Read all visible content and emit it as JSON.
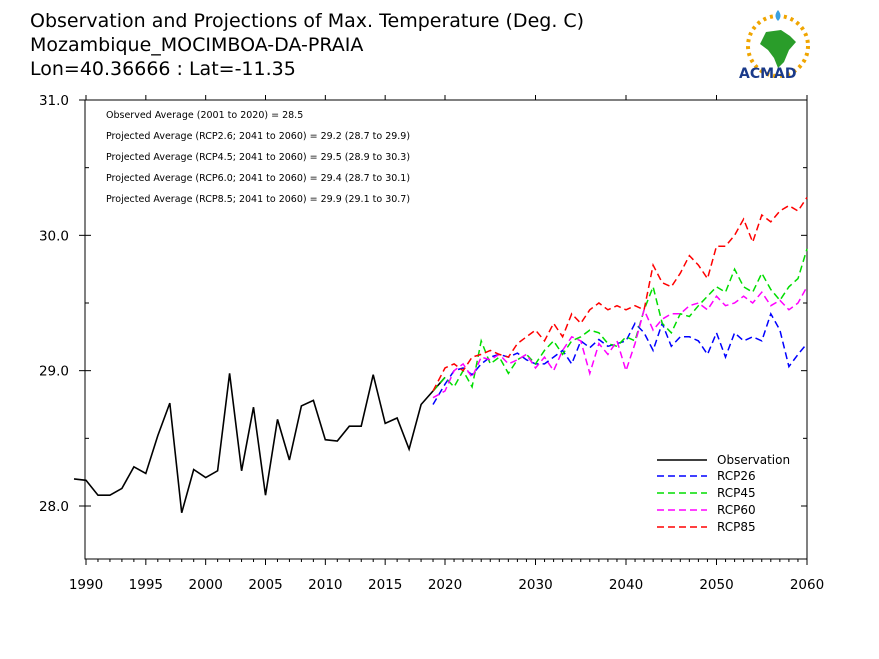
{
  "header": {
    "title_line1": "Observation and Projections of Max. Temperature (Deg. C)",
    "title_line2": "Mozambique_MOCIMBOA-DA-PRAIA",
    "title_line3": "Lon=40.36666 : Lat=-11.35"
  },
  "logo": {
    "text": "ACMAD",
    "icon": "africa-map-logo-icon"
  },
  "notes": [
    "Observed Average (2001 to 2020) = 28.5",
    "Projected Average (RCP2.6; 2041 to 2060) = 29.2 (28.7 to 29.9)",
    "Projected Average (RCP4.5; 2041 to 2060) = 29.5 (28.9 to 30.3)",
    "Projected Average (RCP6.0; 2041 to 2060) = 29.4 (28.7 to 30.1)",
    "Projected Average (RCP8.5; 2041 to 2060) = 29.9 (29.1 to 30.7)"
  ],
  "chart_data": {
    "type": "line",
    "title": "Observation and Projections of Max. Temperature (Deg. C)",
    "xlim": [
      1989,
      2060
    ],
    "ylim": [
      27.6,
      31.0
    ],
    "x_ticks": [
      1990,
      1995,
      2000,
      2005,
      2010,
      2015,
      2020,
      2030,
      2040,
      2050,
      2060
    ],
    "y_ticks": [
      28.0,
      29.0,
      30.0,
      31.0
    ],
    "y_tick_labels": [
      "28.0",
      "29.0",
      "30.0",
      "31.0"
    ],
    "grid": false,
    "legend_position": "bottom-right",
    "series": [
      {
        "name": "Observation",
        "color": "#000000",
        "dash": "solid",
        "x": [
          1989,
          1990,
          1991,
          1992,
          1993,
          1994,
          1995,
          1996,
          1997,
          1998,
          1999,
          2000,
          2001,
          2002,
          2003,
          2004,
          2005,
          2006,
          2007,
          2008,
          2009,
          2010,
          2011,
          2012,
          2013,
          2014,
          2015,
          2016,
          2017,
          2018,
          2019,
          2020
        ],
        "y": [
          28.2,
          28.19,
          28.08,
          28.08,
          28.13,
          28.29,
          28.24,
          28.52,
          28.76,
          27.95,
          28.27,
          28.21,
          28.26,
          28.98,
          28.26,
          28.73,
          28.08,
          28.64,
          28.34,
          28.74,
          28.78,
          28.49,
          28.48,
          28.59,
          28.59,
          28.97,
          28.61,
          28.65,
          28.42,
          28.75,
          28.85,
          28.95
        ]
      },
      {
        "name": "RCP26",
        "color": "#0000ff",
        "dash": "dashed",
        "x": [
          2019,
          2020,
          2021,
          2022,
          2023,
          2024,
          2025,
          2026,
          2027,
          2028,
          2029,
          2030,
          2031,
          2032,
          2033,
          2034,
          2035,
          2036,
          2037,
          2038,
          2039,
          2040,
          2041,
          2042,
          2043,
          2044,
          2045,
          2046,
          2047,
          2048,
          2049,
          2050,
          2051,
          2052,
          2053,
          2054,
          2055,
          2056,
          2057,
          2058,
          2059,
          2060
        ],
        "y": [
          28.75,
          28.9,
          29.0,
          29.02,
          28.97,
          29.05,
          29.1,
          29.12,
          29.1,
          29.13,
          29.08,
          29.05,
          29.05,
          29.1,
          29.15,
          29.05,
          29.22,
          29.17,
          29.23,
          29.18,
          29.2,
          29.22,
          29.35,
          29.28,
          29.15,
          29.35,
          29.18,
          29.25,
          29.25,
          29.22,
          29.12,
          29.28,
          29.1,
          29.28,
          29.22,
          29.25,
          29.22,
          29.42,
          29.3,
          29.03,
          29.12,
          29.2
        ]
      },
      {
        "name": "RCP45",
        "color": "#00dd00",
        "dash": "dashed",
        "x": [
          2019,
          2020,
          2021,
          2022,
          2023,
          2024,
          2025,
          2026,
          2027,
          2028,
          2029,
          2030,
          2031,
          2032,
          2033,
          2034,
          2035,
          2036,
          2037,
          2038,
          2039,
          2040,
          2041,
          2042,
          2043,
          2044,
          2045,
          2046,
          2047,
          2048,
          2049,
          2050,
          2051,
          2052,
          2053,
          2054,
          2055,
          2056,
          2057,
          2058,
          2059,
          2060
        ],
        "y": [
          28.85,
          28.95,
          28.88,
          29.0,
          28.88,
          29.22,
          29.05,
          29.1,
          28.98,
          29.08,
          29.12,
          29.05,
          29.15,
          29.22,
          29.12,
          29.22,
          29.25,
          29.3,
          29.28,
          29.2,
          29.18,
          29.25,
          29.22,
          29.45,
          29.62,
          29.35,
          29.28,
          29.42,
          29.4,
          29.48,
          29.55,
          29.62,
          29.58,
          29.75,
          29.62,
          29.58,
          29.72,
          29.6,
          29.52,
          29.62,
          29.68,
          29.9
        ]
      },
      {
        "name": "RCP60",
        "color": "#ff00ff",
        "dash": "dashed",
        "x": [
          2019,
          2020,
          2021,
          2022,
          2023,
          2024,
          2025,
          2026,
          2027,
          2028,
          2029,
          2030,
          2031,
          2032,
          2033,
          2034,
          2035,
          2036,
          2037,
          2038,
          2039,
          2040,
          2041,
          2042,
          2043,
          2044,
          2045,
          2046,
          2047,
          2048,
          2049,
          2050,
          2051,
          2052,
          2053,
          2054,
          2055,
          2056,
          2057,
          2058,
          2059,
          2060
        ],
        "y": [
          28.8,
          28.85,
          29.0,
          29.05,
          28.95,
          29.1,
          29.08,
          29.12,
          29.05,
          29.08,
          29.12,
          29.02,
          29.1,
          29.0,
          29.15,
          29.25,
          29.22,
          28.98,
          29.2,
          29.12,
          29.22,
          29.0,
          29.2,
          29.45,
          29.3,
          29.38,
          29.42,
          29.42,
          29.48,
          29.5,
          29.45,
          29.55,
          29.48,
          29.5,
          29.55,
          29.5,
          29.58,
          29.48,
          29.52,
          29.45,
          29.5,
          29.62
        ]
      },
      {
        "name": "RCP85",
        "color": "#ff0000",
        "dash": "dashed",
        "x": [
          2019,
          2020,
          2021,
          2022,
          2023,
          2024,
          2025,
          2026,
          2027,
          2028,
          2029,
          2030,
          2031,
          2032,
          2033,
          2034,
          2035,
          2036,
          2037,
          2038,
          2039,
          2040,
          2041,
          2042,
          2043,
          2044,
          2045,
          2046,
          2047,
          2048,
          2049,
          2050,
          2051,
          2052,
          2053,
          2054,
          2055,
          2056,
          2057,
          2058,
          2059,
          2060
        ],
        "y": [
          28.85,
          29.02,
          29.05,
          29.0,
          29.1,
          29.12,
          29.15,
          29.12,
          29.1,
          29.2,
          29.25,
          29.3,
          29.22,
          29.35,
          29.25,
          29.42,
          29.35,
          29.45,
          29.5,
          29.45,
          29.48,
          29.45,
          29.48,
          29.45,
          29.78,
          29.65,
          29.62,
          29.72,
          29.85,
          29.78,
          29.68,
          29.92,
          29.92,
          30.0,
          30.12,
          29.95,
          30.15,
          30.1,
          30.18,
          30.22,
          30.18,
          30.28
        ]
      }
    ]
  }
}
